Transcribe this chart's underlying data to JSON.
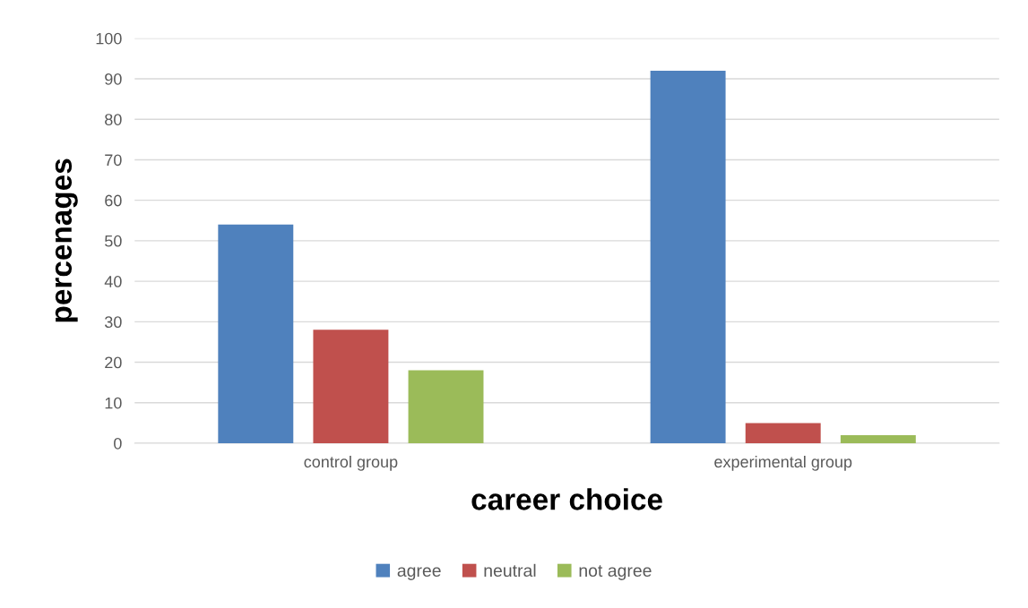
{
  "chart_data": {
    "type": "bar",
    "xlabel": "career choice",
    "ylabel": "percenages",
    "categories": [
      "control group",
      "experimental group"
    ],
    "series": [
      {
        "name": "agree",
        "color": "#4f81bd",
        "values": [
          54,
          92
        ]
      },
      {
        "name": "neutral",
        "color": "#c0504d",
        "values": [
          28,
          5
        ]
      },
      {
        "name": "not agree",
        "color": "#9bbb59",
        "values": [
          18,
          2
        ]
      }
    ],
    "ylim": [
      0,
      100
    ],
    "yticks": [
      0,
      10,
      20,
      30,
      40,
      50,
      60,
      70,
      80,
      90,
      100
    ],
    "grid": "y",
    "legend": "bottom"
  }
}
